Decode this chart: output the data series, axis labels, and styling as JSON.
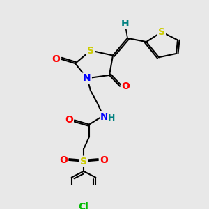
{
  "background_color": "#e8e8e8",
  "atom_colors": {
    "S": "#cccc00",
    "N": "#0000ff",
    "O": "#ff0000",
    "Cl": "#00bb00",
    "H": "#008080",
    "C": "#000000"
  },
  "font_size_atom": 10,
  "font_size_h": 9
}
